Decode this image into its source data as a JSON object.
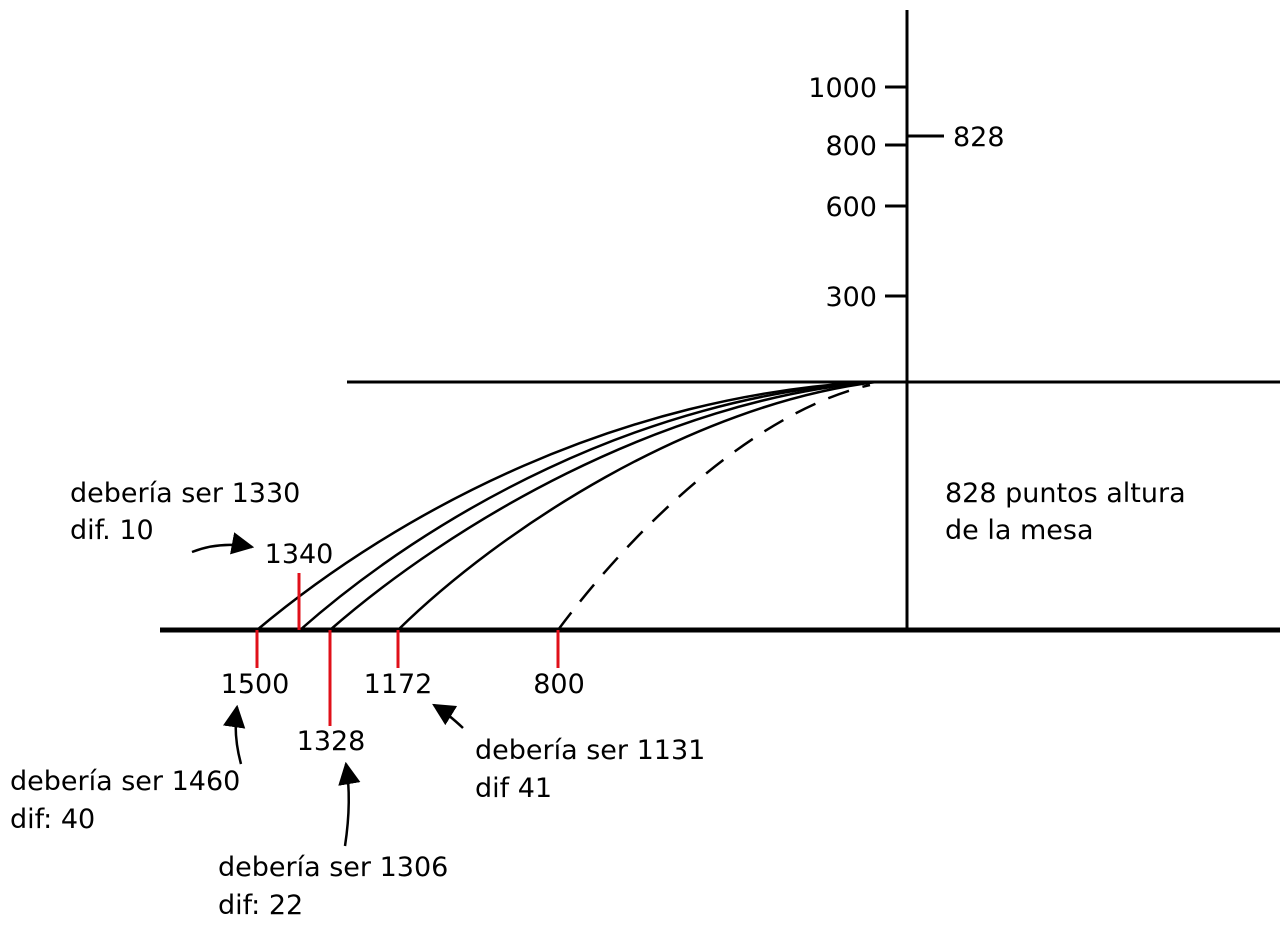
{
  "y_axis": {
    "ticks": [
      "1000",
      "800",
      "600",
      "300"
    ],
    "marker_label": "828"
  },
  "table_note": [
    "828 puntos altura",
    "de la mesa"
  ],
  "landing_marks": {
    "m1500": "1500",
    "m1340": "1340",
    "m1328": "1328",
    "m1172": "1172",
    "m800": "800"
  },
  "annotations": {
    "a1330": [
      "debería ser 1330",
      "dif. 10"
    ],
    "a1460": [
      "debería ser 1460",
      "dif: 40"
    ],
    "a1306": [
      "debería ser 1306",
      "dif: 22"
    ],
    "a1131": [
      "debería ser 1131",
      "dif 41"
    ]
  },
  "colors": {
    "line": "#000000",
    "mark": "#e0101a"
  }
}
